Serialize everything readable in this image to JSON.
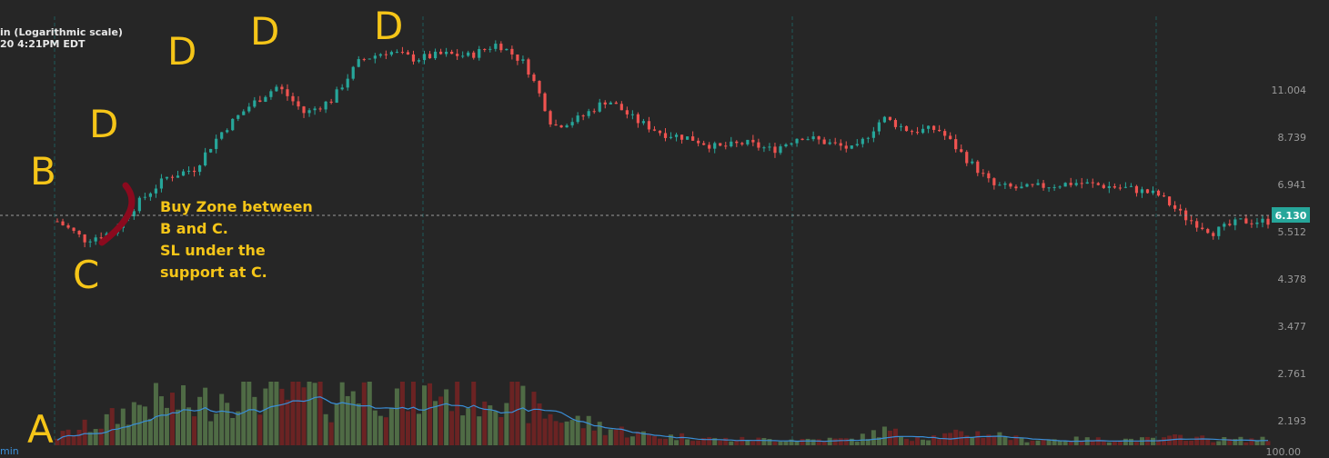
{
  "header": {
    "line1": "in (Logarithmic scale)",
    "line2": "20 4:21PM EDT"
  },
  "volume_label": "min",
  "annotations": {
    "A": "A",
    "B": "B",
    "C": "C",
    "D1": "D",
    "D2": "D",
    "D3": "D"
  },
  "note": {
    "line1": "Buy Zone between",
    "line2": "B and C.",
    "line3": "SL under the",
    "line4": "support at C."
  },
  "colors": {
    "background": "#262626",
    "up": "#26a69a",
    "down": "#ef5350",
    "annotation": "#f5c518",
    "arc": "#8b0a1e",
    "volume_avg": "#3a8fd8",
    "price_badge": "#26a69a"
  },
  "chart_data": {
    "type": "candlestick",
    "y_scale": "log",
    "y_ticks": [
      "11.004",
      "8.739",
      "6.941",
      "5.512",
      "4.378",
      "3.477",
      "2.761",
      "2.193"
    ],
    "volume_axis_label": "100.00",
    "last_price": "6.130",
    "price_path": [
      5.8,
      5.3,
      5.5,
      6.4,
      7.2,
      7.5,
      9.0,
      10.2,
      11.2,
      9.8,
      10.5,
      12.7,
      13.3,
      12.8,
      13.1,
      13.0,
      13.8,
      12.5,
      9.2,
      9.6,
      10.5,
      9.5,
      8.9,
      8.7,
      8.3,
      8.5,
      8.2,
      8.8,
      8.5,
      8.2,
      9.6,
      9.0,
      9.1,
      7.9,
      6.9,
      6.8,
      6.9,
      7.0,
      6.9,
      6.8,
      6.6,
      5.9,
      5.5,
      5.8,
      5.8
    ],
    "volume_path": [
      3,
      6,
      9,
      14,
      15,
      13,
      18,
      20,
      16,
      19,
      15,
      22,
      18,
      16,
      19,
      17,
      20,
      14,
      10,
      8,
      6,
      4,
      3,
      3,
      2,
      2,
      2,
      2,
      2,
      2,
      5,
      3,
      3,
      4,
      4,
      2,
      2,
      2,
      2,
      2,
      2,
      3,
      2,
      2,
      2
    ]
  }
}
